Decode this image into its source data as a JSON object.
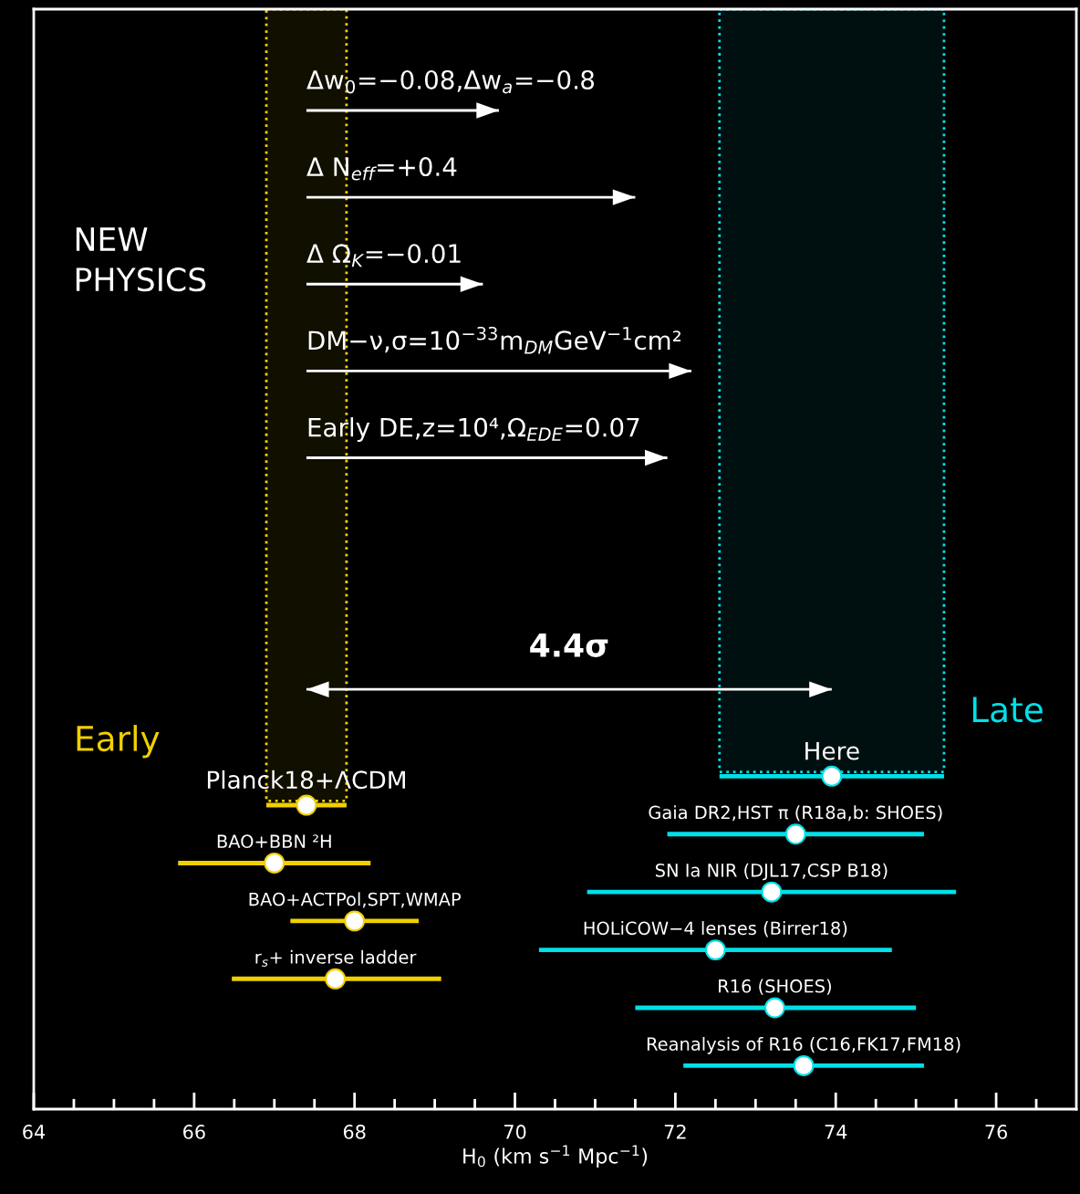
{
  "chart_data": {
    "type": "scatter",
    "orientation": "horizontal",
    "xlabel": "H$_{0}$ (km s$^{−1}$ Mpc$^{−1}$)",
    "xlim": [
      64,
      77
    ],
    "xticks": [
      64,
      {
        "value": 64.5,
        "label": null
      },
      {
        "value": 65,
        "label": null
      },
      {
        "value": 65.5,
        "label": null
      },
      66,
      {
        "value": 66.5,
        "label": null
      },
      {
        "value": 67,
        "label": null
      },
      {
        "value": 67.5,
        "label": null
      },
      68,
      {
        "value": 68.5,
        "label": null
      },
      {
        "value": 69,
        "label": null
      },
      {
        "value": 69.5,
        "label": null
      },
      70,
      {
        "value": 70.5,
        "label": null
      },
      {
        "value": 71,
        "label": null
      },
      {
        "value": 71.5,
        "label": null
      },
      72,
      {
        "value": 72.5,
        "label": null
      },
      {
        "value": 73,
        "label": null
      },
      {
        "value": 73.5,
        "label": null
      },
      74,
      {
        "value": 74.5,
        "label": null
      },
      {
        "value": 75,
        "label": null
      },
      {
        "value": 75.5,
        "label": null
      },
      76,
      {
        "value": 76.5,
        "label": null
      }
    ],
    "tick_labels": "x",
    "marker": "circle",
    "grid": false,
    "categories": [
      null,
      null,
      null,
      null,
      null,
      null,
      null,
      null,
      null,
      null,
      null,
      null,
      null,
      null,
      null,
      null,
      null,
      null,
      null,
      null,
      null,
      null,
      null,
      null,
      null,
      null,
      null,
      null,
      null,
      null,
      null,
      null,
      null,
      null,
      null,
      null,
      null,
      null
    ],
    "series": [
      {
        "type": "bar",
        "color": "#ffffff",
        "base": [
          null,
          null,
          null,
          67.4,
          null,
          null,
          67.4,
          null,
          null,
          67.4,
          null,
          null,
          67.4,
          null,
          null,
          67.4,
          null,
          null,
          null,
          null,
          null,
          null,
          null,
          null,
          null,
          null,
          null,
          null,
          null,
          null,
          null,
          null,
          null,
          null,
          null,
          null,
          null,
          null
        ],
        "values": [
          null,
          null,
          null,
          2.4,
          null,
          null,
          4.1,
          null,
          null,
          2.2,
          null,
          null,
          4.8,
          null,
          null,
          4.5,
          null,
          null,
          null,
          null,
          null,
          null,
          null,
          null,
          null,
          null,
          null,
          null,
          null,
          null,
          null,
          null,
          null,
          null,
          null,
          null,
          null,
          null
        ]
      },
      {
        "type": "bar",
        "color": "#ffffff",
        "base": [
          null,
          null,
          null,
          null,
          null,
          null,
          null,
          null,
          null,
          null,
          null,
          null,
          null,
          null,
          null,
          null,
          null,
          null,
          null,
          null,
          null,
          null,
          null,
          67.4,
          null,
          null,
          null,
          null,
          null,
          null,
          null,
          null,
          null,
          null,
          null,
          null,
          null,
          null
        ],
        "values": [
          null,
          null,
          null,
          null,
          null,
          null,
          null,
          null,
          null,
          null,
          null,
          null,
          null,
          null,
          null,
          null,
          null,
          null,
          null,
          null,
          null,
          null,
          null,
          6.55,
          null,
          null,
          null,
          null,
          null,
          null,
          null,
          null,
          null,
          null,
          null,
          null,
          null,
          null
        ]
      },
      {
        "name": "Early",
        "color": "#f0d000",
        "values": [
          null,
          null,
          null,
          null,
          null,
          null,
          null,
          null,
          null,
          null,
          null,
          null,
          null,
          null,
          null,
          null,
          null,
          null,
          null,
          null,
          null,
          null,
          null,
          null,
          null,
          null,
          null,
          67.4,
          null,
          67.0,
          null,
          68.0,
          null,
          67.76,
          null,
          null,
          null,
          null
        ],
        "colors": [
          null,
          null,
          null,
          null,
          null,
          null,
          null,
          null,
          null,
          null,
          null,
          null,
          null,
          null,
          null,
          null,
          null,
          null,
          null,
          null,
          null,
          null,
          null,
          null,
          null,
          null,
          null,
          "#ffffff",
          null,
          "#ffffff",
          null,
          "#ffffff",
          null,
          "#ffffff",
          null,
          null,
          null,
          null
        ],
        "errors": [
          null,
          null,
          null,
          null,
          null,
          null,
          null,
          null,
          null,
          null,
          null,
          null,
          null,
          null,
          null,
          null,
          null,
          null,
          null,
          null,
          null,
          null,
          null,
          null,
          null,
          null,
          null,
          [
            66.9,
            67.9
          ],
          null,
          [
            65.8,
            68.2
          ],
          null,
          [
            67.2,
            68.8
          ],
          null,
          [
            66.47,
            69.08
          ],
          null,
          null,
          null,
          null
        ]
      },
      {
        "name": "Late",
        "color": "#00e0e8",
        "values": [
          null,
          null,
          null,
          null,
          null,
          null,
          null,
          null,
          null,
          null,
          null,
          null,
          null,
          null,
          null,
          null,
          null,
          null,
          null,
          null,
          null,
          null,
          null,
          null,
          null,
          null,
          73.95,
          null,
          73.5,
          null,
          73.2,
          null,
          72.5,
          null,
          73.24,
          null,
          73.6,
          null
        ],
        "colors": [
          null,
          null,
          null,
          null,
          null,
          null,
          null,
          null,
          null,
          null,
          null,
          null,
          null,
          null,
          null,
          null,
          null,
          null,
          null,
          null,
          null,
          null,
          null,
          null,
          null,
          null,
          "#ffffff",
          null,
          "#ffffff",
          null,
          "#ffffff",
          null,
          "#ffffff",
          null,
          "#ffffff",
          null,
          "#ffffff",
          null
        ],
        "errors": [
          null,
          null,
          null,
          null,
          null,
          null,
          null,
          null,
          null,
          null,
          null,
          null,
          null,
          null,
          null,
          null,
          null,
          null,
          null,
          null,
          null,
          null,
          null,
          null,
          null,
          null,
          [
            72.55,
            75.35
          ],
          null,
          [
            71.9,
            75.1
          ],
          null,
          [
            70.9,
            75.5
          ],
          null,
          [
            70.3,
            74.7
          ],
          null,
          [
            71.5,
            75.0
          ],
          null,
          [
            72.1,
            75.1
          ],
          null
        ]
      }
    ],
    "bands": [
      {
        "axis": "x",
        "from": 66.9,
        "to": 67.9,
        "color": "#f0d000"
      },
      {
        "axis": "x",
        "from": 72.55,
        "to": 75.35,
        "color": "#00e0e8"
      }
    ],
    "annotations": [
      "Δw$_{0}$=−0.08,Δw$_{a}$=−0.8",
      "Δ N$_{eff}$=+0.4",
      "Δ Ω$_{K}$=−0.01",
      "DM−ν,σ=10$^{−33}$m$_{DM}$GeV$^{−1}$cm²",
      "Early DE,z=10⁴,Ω$_{EDE}$=0.07",
      "4.4σ",
      "Here",
      "Planck18+ΛCDM",
      "Gaia DR2,HST π (R18a,b: SHOES)",
      "BAO+BBN ²H",
      "SN Ia NIR (DJL17,CSP B18)",
      "BAO+ACTPol,SPT,WMAP",
      "HOLiCOW−4 lenses (Birrer18)",
      "r$_{s}$+ inverse ladder",
      "R16 (SHOES)",
      "Reanalysis of R16 (C16,FK17,FM18)",
      "NEW\nPHYSICS"
    ]
  }
}
